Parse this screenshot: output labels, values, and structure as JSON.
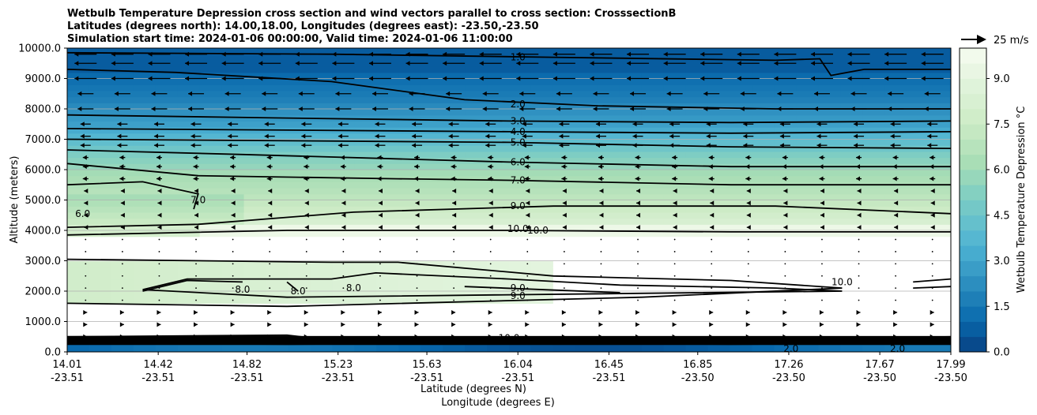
{
  "chart_data": {
    "type": "contour",
    "title_lines": [
      "Wetbulb Temperature Depression cross section and wind vectors parallel to cross section: CrosssectionB",
      "Latitudes (degrees north): 14.00,18.00, Longitudes (degrees east): -23.50,-23.50",
      "Simulation start time: 2024-01-06 00:00:00, Valid time: 2024-01-06 11:00:00"
    ],
    "ylabel": "Altitude (meters)",
    "xlabel": "Latitude (degrees N)",
    "xlabel2": "Longitude (degrees E)",
    "ylim": [
      0,
      10000
    ],
    "yticks": [
      "0.0",
      "1000.0",
      "2000.0",
      "3000.0",
      "4000.0",
      "5000.0",
      "6000.0",
      "7000.0",
      "8000.0",
      "9000.0",
      "10000.0"
    ],
    "yticks_values": [
      0,
      1000,
      2000,
      3000,
      4000,
      5000,
      6000,
      7000,
      8000,
      9000,
      10000
    ],
    "xticks_lat": [
      "14.01",
      "14.42",
      "14.82",
      "15.23",
      "15.63",
      "16.04",
      "16.45",
      "16.85",
      "17.26",
      "17.67",
      "17.99"
    ],
    "xticks_lon": [
      "-23.51",
      "-23.51",
      "-23.51",
      "-23.51",
      "-23.51",
      "-23.51",
      "-23.51",
      "-23.50",
      "-23.50",
      "-23.50",
      "-23.50"
    ],
    "xticks_values": [
      14.01,
      14.42,
      14.82,
      15.23,
      15.63,
      16.04,
      16.45,
      16.85,
      17.26,
      17.67,
      17.99
    ],
    "xlim": [
      14.01,
      17.99
    ],
    "grid": "horizontal",
    "colorbar": {
      "label": "Wetbulb Temperature Depression °C",
      "range": [
        0,
        10
      ],
      "ticks": [
        "0.0",
        "1.5",
        "3.0",
        "4.5",
        "6.0",
        "7.5",
        "9.0"
      ],
      "ticks_values": [
        0,
        1.5,
        3.0,
        4.5,
        6.0,
        7.5,
        9.0
      ],
      "colormap": "GnBu_r"
    },
    "quiver_key": {
      "label": "25 m/s",
      "speed": 25
    },
    "contour_labels_shown": [
      {
        "text": "1.0",
        "x": 16.04,
        "y": 9700
      },
      {
        "text": "2.0",
        "x": 16.04,
        "y": 8150
      },
      {
        "text": "3.0",
        "x": 16.04,
        "y": 7600
      },
      {
        "text": "4.0",
        "x": 16.04,
        "y": 7250
      },
      {
        "text": "5.0",
        "x": 16.04,
        "y": 6900
      },
      {
        "text": "6.0",
        "x": 16.04,
        "y": 6250
      },
      {
        "text": "7.0",
        "x": 16.04,
        "y": 5650
      },
      {
        "text": "7.0",
        "x": 14.6,
        "y": 5000
      },
      {
        "text": "6.0",
        "x": 14.08,
        "y": 4550
      },
      {
        "text": "9.0",
        "x": 16.04,
        "y": 4800
      },
      {
        "text": "10.0",
        "x": 16.04,
        "y": 4050
      },
      {
        "text": "10.0",
        "x": 16.13,
        "y": 4000
      },
      {
        "text": "8.0",
        "x": 14.8,
        "y": 2050
      },
      {
        "text": "8.0",
        "x": 15.05,
        "y": 2000
      },
      {
        "text": "8.0",
        "x": 15.3,
        "y": 2100
      },
      {
        "text": "9.0",
        "x": 16.04,
        "y": 2100
      },
      {
        "text": "9.0",
        "x": 16.04,
        "y": 1850
      },
      {
        "text": "10.0",
        "x": 17.5,
        "y": 2300
      },
      {
        "text": "10.0",
        "x": 16.0,
        "y": 450
      },
      {
        "text": "2.0",
        "x": 17.27,
        "y": 100
      },
      {
        "text": "2.0",
        "x": 17.75,
        "y": 100
      }
    ]
  }
}
